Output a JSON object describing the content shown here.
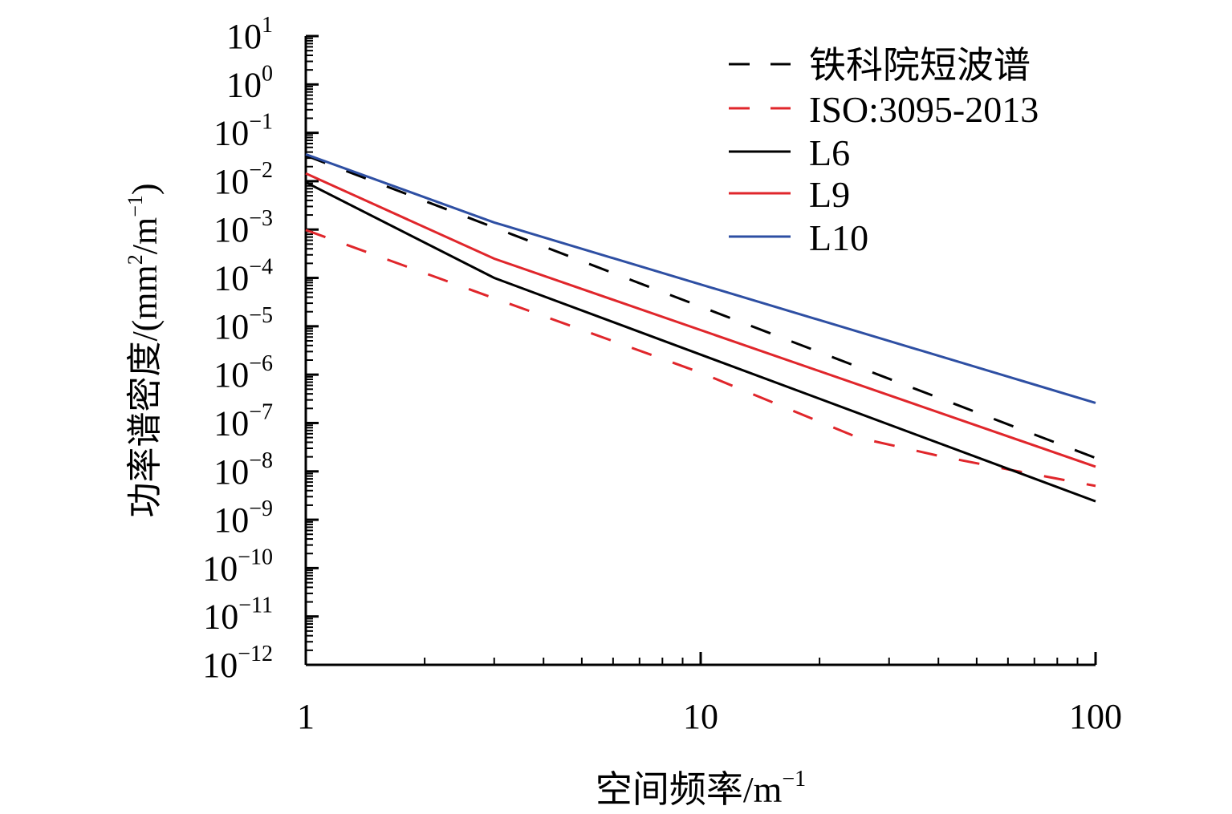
{
  "chart_data": {
    "type": "line",
    "title": "",
    "xlabel": "空间频率/m",
    "xlabel_sup": "−1",
    "ylabel": "功率谱密度/(mm",
    "ylabel_sup1": "2",
    "ylabel_mid": "/m",
    "ylabel_sup2": "−1",
    "ylabel_end": ")",
    "xscale": "log",
    "yscale": "log",
    "xlim": [
      1,
      100
    ],
    "ylim": [
      1e-12,
      10
    ],
    "x_ticks": [
      {
        "value": 1,
        "label": "1"
      },
      {
        "value": 10,
        "label": "10"
      },
      {
        "value": 100,
        "label": "100"
      }
    ],
    "y_tick_exponents": [
      1,
      0,
      -1,
      -2,
      -3,
      -4,
      -5,
      -6,
      -7,
      -8,
      -9,
      -10,
      -11,
      -12
    ],
    "y_tick_base": "10",
    "grid": false,
    "legend_position": "top-right",
    "series": [
      {
        "name": "铁科院短波谱",
        "color": "#000000",
        "dash": true,
        "x": [
          1,
          3,
          100
        ],
        "y": [
          0.034,
          0.0011,
          1.9e-08
        ]
      },
      {
        "name": "ISO:3095-2013",
        "color": "#e0262b",
        "dash": true,
        "x": [
          1,
          3,
          10,
          25,
          40,
          60,
          100
        ],
        "y": [
          0.00098,
          3.8e-05,
          1.1e-06,
          5e-08,
          2.1e-08,
          1.1e-08,
          5e-09
        ]
      },
      {
        "name": "L6",
        "color": "#000000",
        "dash": false,
        "x": [
          1,
          3,
          100
        ],
        "y": [
          0.0095,
          0.0001,
          2.4e-09
        ]
      },
      {
        "name": "L9",
        "color": "#e0262b",
        "dash": false,
        "x": [
          1,
          3,
          100
        ],
        "y": [
          0.0145,
          0.00025,
          1.25e-08
        ]
      },
      {
        "name": "L10",
        "color": "#2e4fa3",
        "dash": false,
        "x": [
          1,
          3,
          100
        ],
        "y": [
          0.036,
          0.0014,
          2.6e-07
        ]
      }
    ]
  }
}
